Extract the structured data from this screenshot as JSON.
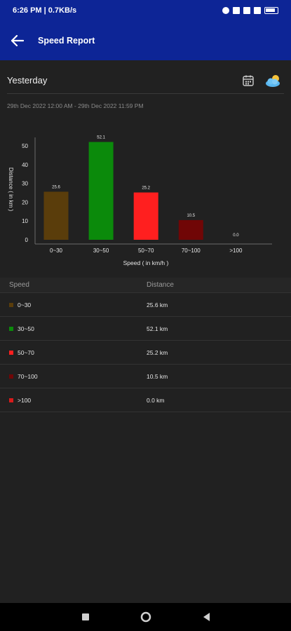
{
  "status_bar": {
    "time_info": "6:26 PM | 0.7KB/s"
  },
  "app_bar": {
    "title": "Speed Report",
    "back_icon": "arrow-left-icon"
  },
  "period": {
    "label": "Yesterday",
    "calendar_icon": "calendar-icon",
    "weather_icon": "cloud-sun-icon"
  },
  "date_range": "29th Dec 2022 12:00 AM - 29th Dec 2022 11:59 PM",
  "chart_data": {
    "type": "bar",
    "categories": [
      "0~30",
      "30~50",
      "50~70",
      "70~100",
      ">100"
    ],
    "values": [
      25.6,
      52.1,
      25.2,
      10.5,
      0.0
    ],
    "value_labels": [
      "25.6",
      "52.1",
      "25.2",
      "10.5",
      "0.0"
    ],
    "colors": [
      "#5a3d0b",
      "#0b8a0b",
      "#ff1f1f",
      "#700606",
      "#d81b1b"
    ],
    "xlabel": "Speed ( in km/h )",
    "ylabel": "Distance ( in km )",
    "yticks": [
      0,
      10,
      20,
      30,
      40,
      50
    ],
    "ylim": [
      0,
      55
    ],
    "grid": false
  },
  "table": {
    "headers": {
      "speed": "Speed",
      "distance": "Distance"
    },
    "rows": [
      {
        "speed": "0~30",
        "distance": "25.6 km",
        "color": "#5a3d0b"
      },
      {
        "speed": "30~50",
        "distance": "52.1 km",
        "color": "#0b8a0b"
      },
      {
        "speed": "50~70",
        "distance": "25.2 km",
        "color": "#ff1f1f"
      },
      {
        "speed": "70~100",
        "distance": "10.5 km",
        "color": "#700606"
      },
      {
        "speed": ">100",
        "distance": "0.0 km",
        "color": "#d81b1b"
      }
    ]
  },
  "nav_bar": {
    "recents_icon": "square-icon",
    "home_icon": "circle-icon",
    "back_icon": "triangle-back-icon"
  }
}
